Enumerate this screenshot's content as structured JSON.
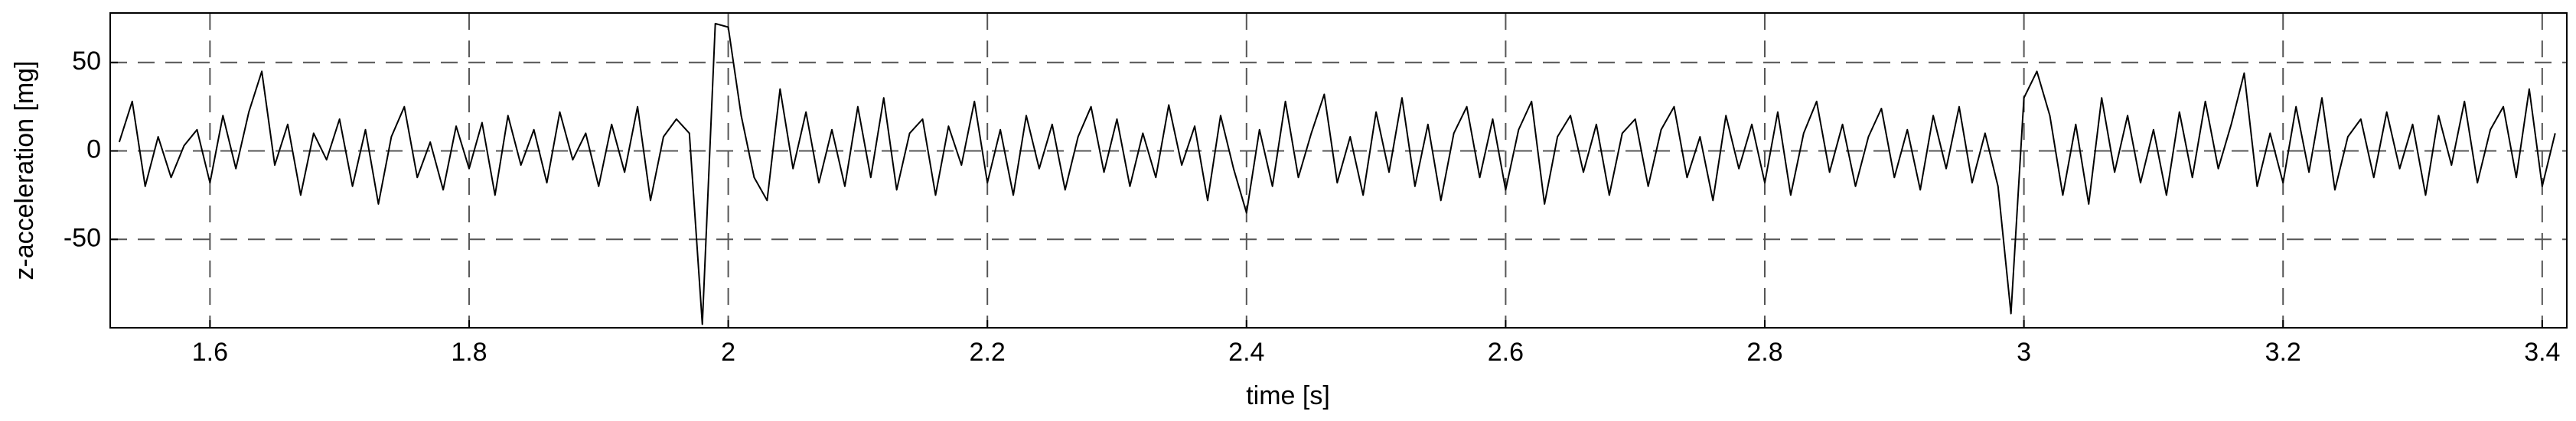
{
  "chart_data": {
    "type": "line",
    "x_label": "time [s]",
    "y_label": "z-acceleration [mg]",
    "xlim": [
      1.523,
      3.419
    ],
    "ylim": [
      -100,
      78
    ],
    "xticks": [
      1.6,
      1.8,
      2,
      2.2,
      2.4,
      2.6,
      2.8,
      3,
      3.2,
      3.4
    ],
    "yticks": [
      -50,
      0,
      50
    ],
    "grid": true,
    "series": [
      {
        "color": "#000000",
        "x": [
          1.53,
          1.54,
          1.55,
          1.56,
          1.57,
          1.58,
          1.59,
          1.6,
          1.61,
          1.62,
          1.63,
          1.64,
          1.65,
          1.66,
          1.67,
          1.68,
          1.69,
          1.7,
          1.71,
          1.72,
          1.73,
          1.74,
          1.75,
          1.76,
          1.77,
          1.78,
          1.79,
          1.8,
          1.81,
          1.82,
          1.83,
          1.84,
          1.85,
          1.86,
          1.87,
          1.88,
          1.89,
          1.9,
          1.91,
          1.92,
          1.93,
          1.94,
          1.95,
          1.96,
          1.97,
          1.98,
          1.99,
          2.0,
          2.01,
          2.02,
          2.03,
          2.04,
          2.05,
          2.06,
          2.07,
          2.08,
          2.09,
          2.1,
          2.11,
          2.12,
          2.13,
          2.14,
          2.15,
          2.16,
          2.17,
          2.18,
          2.19,
          2.2,
          2.21,
          2.22,
          2.23,
          2.24,
          2.25,
          2.26,
          2.27,
          2.28,
          2.29,
          2.3,
          2.31,
          2.32,
          2.33,
          2.34,
          2.35,
          2.36,
          2.37,
          2.38,
          2.39,
          2.4,
          2.41,
          2.42,
          2.43,
          2.44,
          2.45,
          2.46,
          2.47,
          2.48,
          2.49,
          2.5,
          2.51,
          2.52,
          2.53,
          2.54,
          2.55,
          2.56,
          2.57,
          2.58,
          2.59,
          2.6,
          2.61,
          2.62,
          2.63,
          2.64,
          2.65,
          2.66,
          2.67,
          2.68,
          2.69,
          2.7,
          2.71,
          2.72,
          2.73,
          2.74,
          2.75,
          2.76,
          2.77,
          2.78,
          2.79,
          2.8,
          2.81,
          2.82,
          2.83,
          2.84,
          2.85,
          2.86,
          2.87,
          2.88,
          2.89,
          2.9,
          2.91,
          2.92,
          2.93,
          2.94,
          2.95,
          2.96,
          2.97,
          2.98,
          2.99,
          3.0,
          3.01,
          3.02,
          3.03,
          3.04,
          3.05,
          3.06,
          3.07,
          3.08,
          3.09,
          3.1,
          3.11,
          3.12,
          3.13,
          3.14,
          3.15,
          3.16,
          3.17,
          3.18,
          3.19,
          3.2,
          3.21,
          3.22,
          3.23,
          3.24,
          3.25,
          3.26,
          3.27,
          3.28,
          3.29,
          3.3,
          3.31,
          3.32,
          3.33,
          3.34,
          3.35,
          3.36,
          3.37,
          3.38,
          3.39,
          3.4,
          3.41
        ],
        "values": [
          5,
          28,
          -20,
          8,
          -15,
          3,
          12,
          -18,
          20,
          -10,
          22,
          45,
          -8,
          15,
          -25,
          10,
          -5,
          18,
          -20,
          12,
          -30,
          8,
          25,
          -15,
          5,
          -22,
          14,
          -10,
          16,
          -25,
          20,
          -8,
          12,
          -18,
          22,
          -5,
          10,
          -20,
          15,
          -12,
          25,
          -28,
          8,
          18,
          10,
          -98,
          72,
          70,
          20,
          -15,
          -28,
          35,
          -10,
          22,
          -18,
          12,
          -20,
          25,
          -15,
          30,
          -22,
          10,
          18,
          -25,
          14,
          -8,
          28,
          -18,
          12,
          -25,
          20,
          -10,
          15,
          -22,
          8,
          25,
          -12,
          18,
          -20,
          10,
          -15,
          26,
          -8,
          14,
          -28,
          20,
          -10,
          -35,
          12,
          -20,
          28,
          -15,
          10,
          32,
          -18,
          8,
          -25,
          22,
          -12,
          30,
          -20,
          15,
          -28,
          10,
          25,
          -15,
          18,
          -22,
          12,
          28,
          -30,
          8,
          20,
          -12,
          15,
          -25,
          10,
          18,
          -20,
          12,
          25,
          -15,
          8,
          -28,
          20,
          -10,
          15,
          -18,
          22,
          -25,
          10,
          28,
          -12,
          15,
          -20,
          8,
          24,
          -15,
          12,
          -22,
          20,
          -10,
          25,
          -18,
          10,
          -20,
          -92,
          30,
          45,
          20,
          -25,
          15,
          -30,
          30,
          -12,
          20,
          -18,
          12,
          -25,
          22,
          -15,
          28,
          -10,
          15,
          44,
          -20,
          10,
          -18,
          25,
          -12,
          30,
          -22,
          8,
          18,
          -15,
          22,
          -10,
          15,
          -25,
          20,
          -8,
          28,
          -18,
          12,
          25,
          -15,
          35,
          -20,
          10
        ]
      }
    ]
  }
}
